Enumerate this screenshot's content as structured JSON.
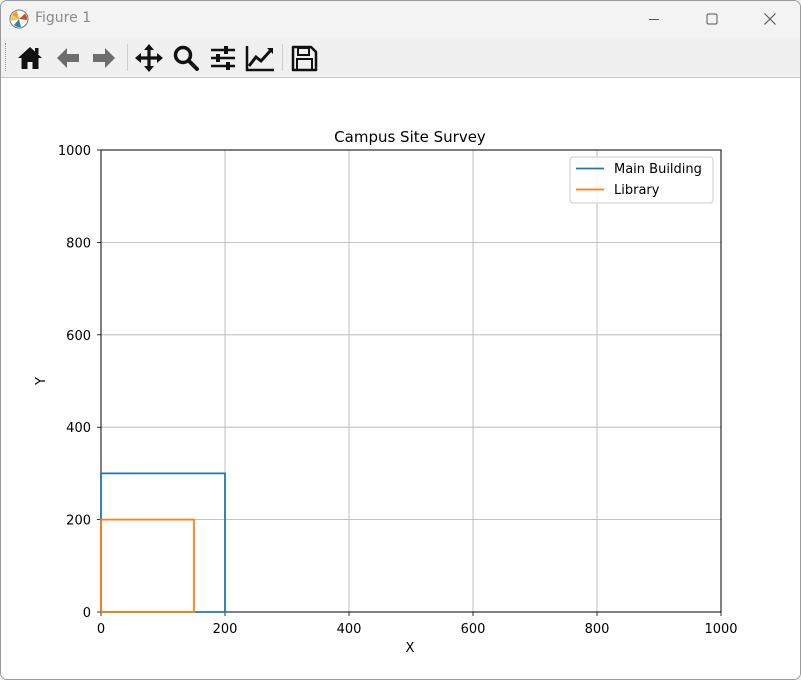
{
  "window": {
    "title": "Figure 1",
    "minimize_label": "",
    "maximize_label": "",
    "close_label": ""
  },
  "toolbar": {
    "buttons": [
      {
        "name": "home",
        "icon": "home-icon"
      },
      {
        "name": "back",
        "icon": "arrow-left-icon"
      },
      {
        "name": "forward",
        "icon": "arrow-right-icon"
      },
      {
        "name": "pan",
        "icon": "move-icon"
      },
      {
        "name": "zoom",
        "icon": "magnifier-icon"
      },
      {
        "name": "configure-subplots",
        "icon": "sliders-icon"
      },
      {
        "name": "edit-axes",
        "icon": "line-chart-icon"
      },
      {
        "name": "save",
        "icon": "floppy-disk-icon"
      }
    ]
  },
  "chart_data": {
    "type": "line",
    "title": "Campus Site Survey",
    "xlabel": "X",
    "ylabel": "Y",
    "xlim": [
      0,
      1000
    ],
    "ylim": [
      0,
      1000
    ],
    "xticks": [
      "0",
      "200",
      "400",
      "600",
      "800",
      "1000"
    ],
    "yticks": [
      "0",
      "200",
      "400",
      "600",
      "800",
      "1000"
    ],
    "grid": true,
    "legend_position": "top-right",
    "series": [
      {
        "name": "Main Building",
        "color": "#1f77b4",
        "x": [
          0,
          200,
          200,
          0,
          0
        ],
        "y": [
          0,
          0,
          300,
          300,
          0
        ]
      },
      {
        "name": "Library",
        "color": "#ff7f0e",
        "x": [
          0,
          150,
          150,
          0,
          0
        ],
        "y": [
          0,
          0,
          200,
          200,
          0
        ]
      }
    ]
  }
}
